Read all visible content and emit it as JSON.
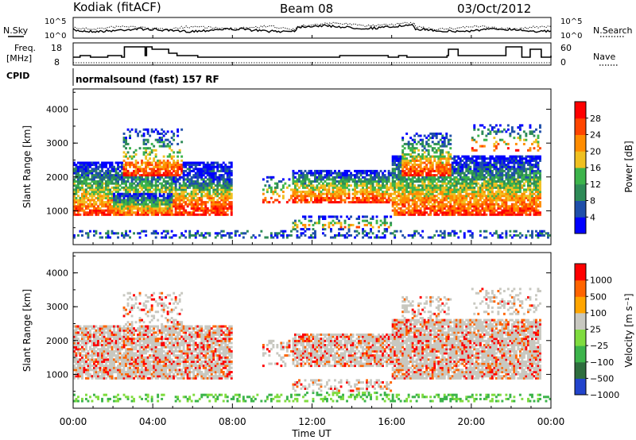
{
  "header": {
    "radar": "Kodiak (fitACF)",
    "beam": "Beam 08",
    "date": "03/Oct/2012"
  },
  "top_panels": {
    "nsky_label": "N.Sky",
    "nsearch_label": "N.Search",
    "noise_ticks": [
      "10^5",
      "10^0"
    ],
    "freq_label_1": "Freq.",
    "freq_label_2": "[MHz]",
    "freq_ticks": [
      "18",
      "8"
    ],
    "nave_label": "Nave",
    "nave_ticks": [
      "60",
      "0"
    ],
    "cpid_label": "CPID",
    "cpid_value": "normalsound (fast) 157 RF"
  },
  "colors": {
    "power": [
      "#0000ff",
      "#1f4faa",
      "#2e8b57",
      "#3cb44b",
      "#f0c020",
      "#ff8c00",
      "#ff4500",
      "#ff0000"
    ],
    "velocity": [
      "#2244cc",
      "#2e6e3e",
      "#3cb44b",
      "#7fdc3f",
      "#c8c8c0",
      "#ffa500",
      "#ff6400",
      "#ff0000"
    ]
  },
  "chart_data": [
    {
      "type": "heatmap",
      "name": "power",
      "ylabel": "Slant Range [km]",
      "yticks": [
        "1000",
        "2000",
        "3000",
        "4000"
      ],
      "ylim": [
        0,
        4600
      ],
      "xlim": [
        0,
        24
      ],
      "colorbar_label": "Power [dB]",
      "colorbar_ticks": [
        "28",
        "24",
        "20",
        "16",
        "12",
        "8",
        "4"
      ]
    },
    {
      "type": "heatmap",
      "name": "velocity",
      "ylabel": "Slant Range [km]",
      "yticks": [
        "1000",
        "2000",
        "3000",
        "4000"
      ],
      "ylim": [
        0,
        4600
      ],
      "xlim": [
        0,
        24
      ],
      "colorbar_label": "Velocity [m s⁻¹]",
      "colorbar_ticks": [
        "1000",
        "500",
        "100",
        "25",
        "−25",
        "−100",
        "−500",
        "−1000"
      ]
    }
  ],
  "xaxis": {
    "ticks": [
      "00:00",
      "04:00",
      "08:00",
      "12:00",
      "16:00",
      "20:00",
      "00:00"
    ],
    "label": "Time UT"
  }
}
